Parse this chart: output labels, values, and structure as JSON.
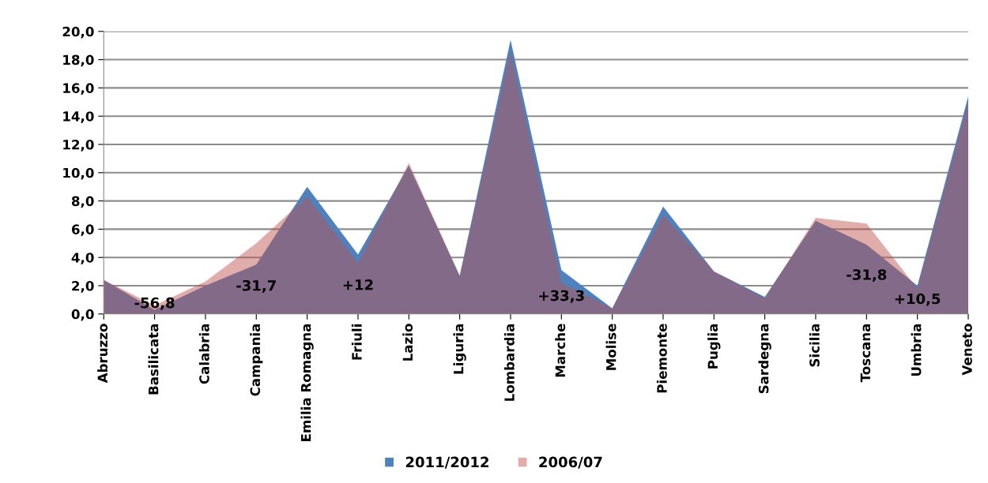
{
  "chart_data": {
    "type": "area",
    "categories": [
      "Abruzzo",
      "Basilicata",
      "Calabria",
      "Campania",
      "Emilia Romagna",
      "Friuli",
      "Lazio",
      "Liguria",
      "Lombardia",
      "Marche",
      "Molise",
      "Piemonte",
      "Puglia",
      "Sardegna",
      "Sicilia",
      "Toscana",
      "Umbria",
      "Veneto"
    ],
    "series": [
      {
        "name": "2011/2012",
        "color": "#4f81bd",
        "values": [
          2.4,
          0.3,
          2.0,
          3.5,
          9.0,
          4.2,
          10.5,
          2.7,
          19.4,
          3.1,
          0.4,
          7.6,
          3.0,
          1.2,
          6.6,
          4.9,
          2.0,
          15.4
        ]
      },
      {
        "name": "2006/07",
        "color": "#c0504d",
        "values": [
          2.4,
          0.6,
          2.3,
          5.0,
          8.3,
          3.6,
          10.7,
          2.7,
          18.6,
          2.2,
          0.4,
          7.0,
          3.0,
          1.1,
          6.8,
          6.4,
          1.8,
          15.0
        ]
      }
    ],
    "annotations": [
      {
        "text": "-56,8",
        "x": "Basilicata",
        "y": 0.3
      },
      {
        "text": "-31,7",
        "x": "Campania",
        "y": 3.5
      },
      {
        "text": "+12",
        "x": "Friuli",
        "y": 3.6
      },
      {
        "text": "+33,3",
        "x": "Marche",
        "y": 2.2
      },
      {
        "text": "-31,8",
        "x": "Toscana",
        "y": 4.9
      },
      {
        "text": "+10,5",
        "x": "Umbria",
        "y": 1.8
      }
    ],
    "ylim": [
      0,
      20
    ],
    "yticks": [
      {
        "value": 0,
        "label": "0,0"
      },
      {
        "value": 2,
        "label": "2,0"
      },
      {
        "value": 4,
        "label": "4,0"
      },
      {
        "value": 6,
        "label": "6,0"
      },
      {
        "value": 8,
        "label": "8,0"
      },
      {
        "value": 10,
        "label": "10,0"
      },
      {
        "value": 12,
        "label": "12,0"
      },
      {
        "value": 14,
        "label": "14,0"
      },
      {
        "value": 16,
        "label": "16,0"
      },
      {
        "value": 18,
        "label": "18,0"
      },
      {
        "value": 20,
        "label": "20,0"
      }
    ],
    "grid": "y",
    "legend": "bottom"
  }
}
